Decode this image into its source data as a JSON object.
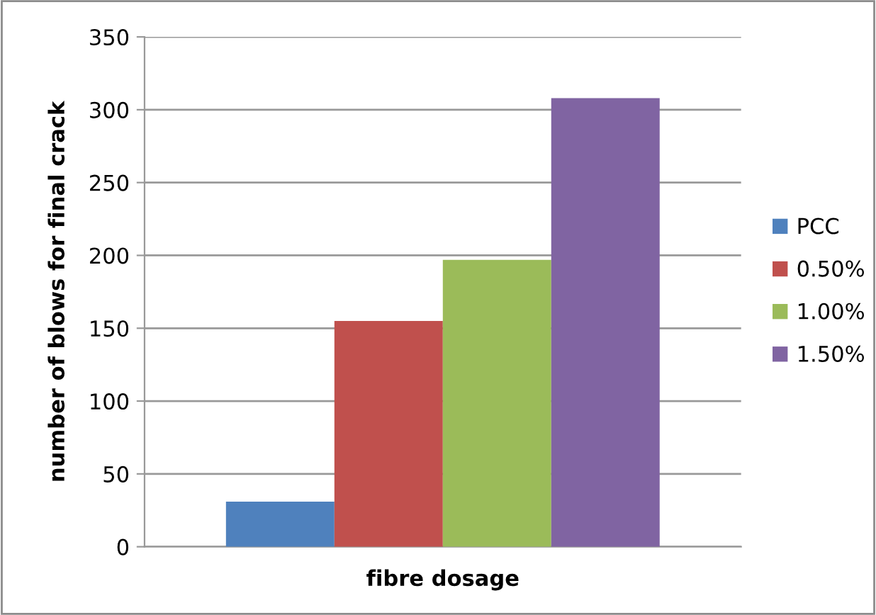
{
  "chart_data": {
    "type": "bar",
    "xlabel": "fibre dosage",
    "ylabel": "number of blows for final crack",
    "categories": [
      null
    ],
    "series": [
      {
        "name": "PCC",
        "color": "#4f81bd",
        "values": [
          31
        ]
      },
      {
        "name": "0.50%",
        "color": "#c0504d",
        "values": [
          155
        ]
      },
      {
        "name": "1.00%",
        "color": "#9bbb59",
        "values": [
          197
        ]
      },
      {
        "name": "1.50%",
        "color": "#8064a2",
        "values": [
          308
        ]
      }
    ],
    "ylim": [
      0,
      350
    ],
    "yticks": [
      0,
      50,
      100,
      150,
      200,
      250,
      300,
      350
    ],
    "grid": "y",
    "legend": "right"
  }
}
